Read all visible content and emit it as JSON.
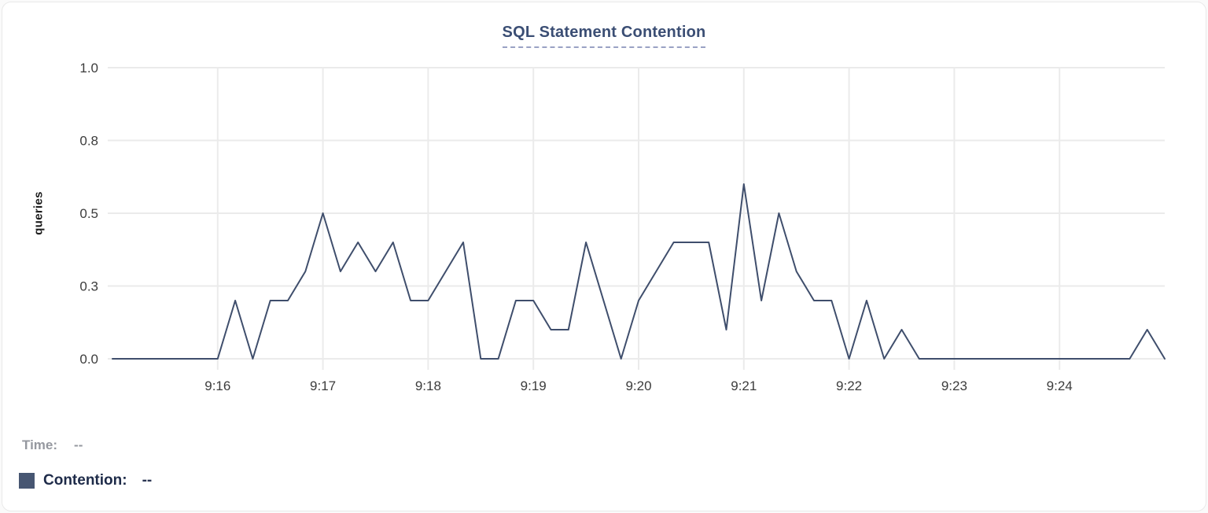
{
  "chart_data": {
    "type": "line",
    "title": "SQL Statement Contention",
    "ylabel": "queries",
    "xlabel": "",
    "ylim": [
      0,
      1.0
    ],
    "grid": true,
    "legend_position": "bottom-left",
    "y_ticks": [
      {
        "v": 0.0,
        "label": "0.0"
      },
      {
        "v": 0.25,
        "label": "0.3"
      },
      {
        "v": 0.5,
        "label": "0.5"
      },
      {
        "v": 0.75,
        "label": "0.8"
      },
      {
        "v": 1.0,
        "label": "1.0"
      }
    ],
    "x_ticks": [
      {
        "minute": 1,
        "label": "9:16"
      },
      {
        "minute": 2,
        "label": "9:17"
      },
      {
        "minute": 3,
        "label": "9:18"
      },
      {
        "minute": 4,
        "label": "9:19"
      },
      {
        "minute": 5,
        "label": "9:20"
      },
      {
        "minute": 6,
        "label": "9:21"
      },
      {
        "minute": 7,
        "label": "9:22"
      },
      {
        "minute": 8,
        "label": "9:23"
      },
      {
        "minute": 9,
        "label": "9:24"
      }
    ],
    "x_start": "9:15:00",
    "x_end": "9:25:00",
    "sample_interval_seconds": 10,
    "series": [
      {
        "name": "Contention",
        "color": "#3f4e6c",
        "swatch_color": "#475672",
        "times": [
          "9:15:00",
          "9:15:10",
          "9:15:20",
          "9:15:30",
          "9:15:40",
          "9:15:50",
          "9:16:00",
          "9:16:10",
          "9:16:20",
          "9:16:30",
          "9:16:40",
          "9:16:50",
          "9:17:00",
          "9:17:10",
          "9:17:20",
          "9:17:30",
          "9:17:40",
          "9:17:50",
          "9:18:00",
          "9:18:10",
          "9:18:20",
          "9:18:30",
          "9:18:40",
          "9:18:50",
          "9:19:00",
          "9:19:10",
          "9:19:20",
          "9:19:30",
          "9:19:40",
          "9:19:50",
          "9:20:00",
          "9:20:10",
          "9:20:20",
          "9:20:30",
          "9:20:40",
          "9:20:50",
          "9:21:00",
          "9:21:10",
          "9:21:20",
          "9:21:30",
          "9:21:40",
          "9:21:50",
          "9:22:00",
          "9:22:10",
          "9:22:20",
          "9:22:30",
          "9:22:40",
          "9:22:50",
          "9:23:00",
          "9:23:10",
          "9:23:20",
          "9:23:30",
          "9:23:40",
          "9:23:50",
          "9:24:00",
          "9:24:10",
          "9:24:20",
          "9:24:30",
          "9:24:40",
          "9:24:50",
          "9:25:00"
        ],
        "values": [
          0,
          0,
          0,
          0,
          0,
          0,
          0,
          0.2,
          0,
          0.2,
          0.2,
          0.3,
          0.5,
          0.3,
          0.4,
          0.3,
          0.4,
          0.2,
          0.2,
          0.3,
          0.4,
          0,
          0,
          0.2,
          0.2,
          0.1,
          0.1,
          0.4,
          0.2,
          0,
          0.2,
          0.3,
          0.4,
          0.4,
          0.4,
          0.1,
          0.6,
          0.2,
          0.5,
          0.3,
          0.2,
          0.2,
          0,
          0.2,
          0,
          0.1,
          0,
          0,
          0,
          0,
          0,
          0,
          0,
          0,
          0,
          0,
          0,
          0,
          0,
          0.1,
          0
        ]
      }
    ]
  },
  "legend": {
    "time_label": "Time:",
    "time_value": "--",
    "contention_label": "Contention:",
    "contention_value": "--"
  },
  "colors": {
    "gridline": "#ebebeb",
    "tick_label": "#3c3c3c",
    "title": "#3b4e74"
  }
}
